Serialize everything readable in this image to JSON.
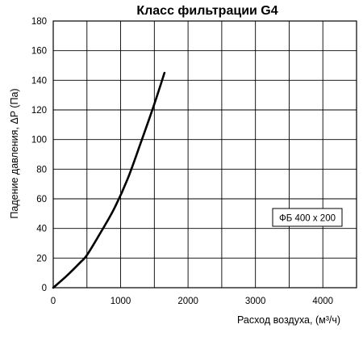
{
  "chart_data": {
    "type": "line",
    "title": "Класс фильтрации G4",
    "xlabel": "Расход воздуха, (м³/ч)",
    "ylabel": "Падение давления, ΔP (Па)",
    "xlim": [
      0,
      4500
    ],
    "ylim": [
      0,
      180
    ],
    "x_ticks": [
      0,
      1000,
      2000,
      3000,
      4000
    ],
    "y_ticks": [
      0,
      20,
      40,
      60,
      80,
      100,
      120,
      140,
      160,
      180
    ],
    "grid": true,
    "legend_position": "right",
    "series": [
      {
        "name": "ФБ 400 x 200",
        "color": "#000000",
        "x": [
          0,
          200,
          400,
          500,
          700,
          900,
          1100,
          1300,
          1500,
          1650
        ],
        "y": [
          0,
          8,
          17,
          22,
          37,
          53,
          73,
          98,
          124,
          145
        ]
      }
    ]
  }
}
